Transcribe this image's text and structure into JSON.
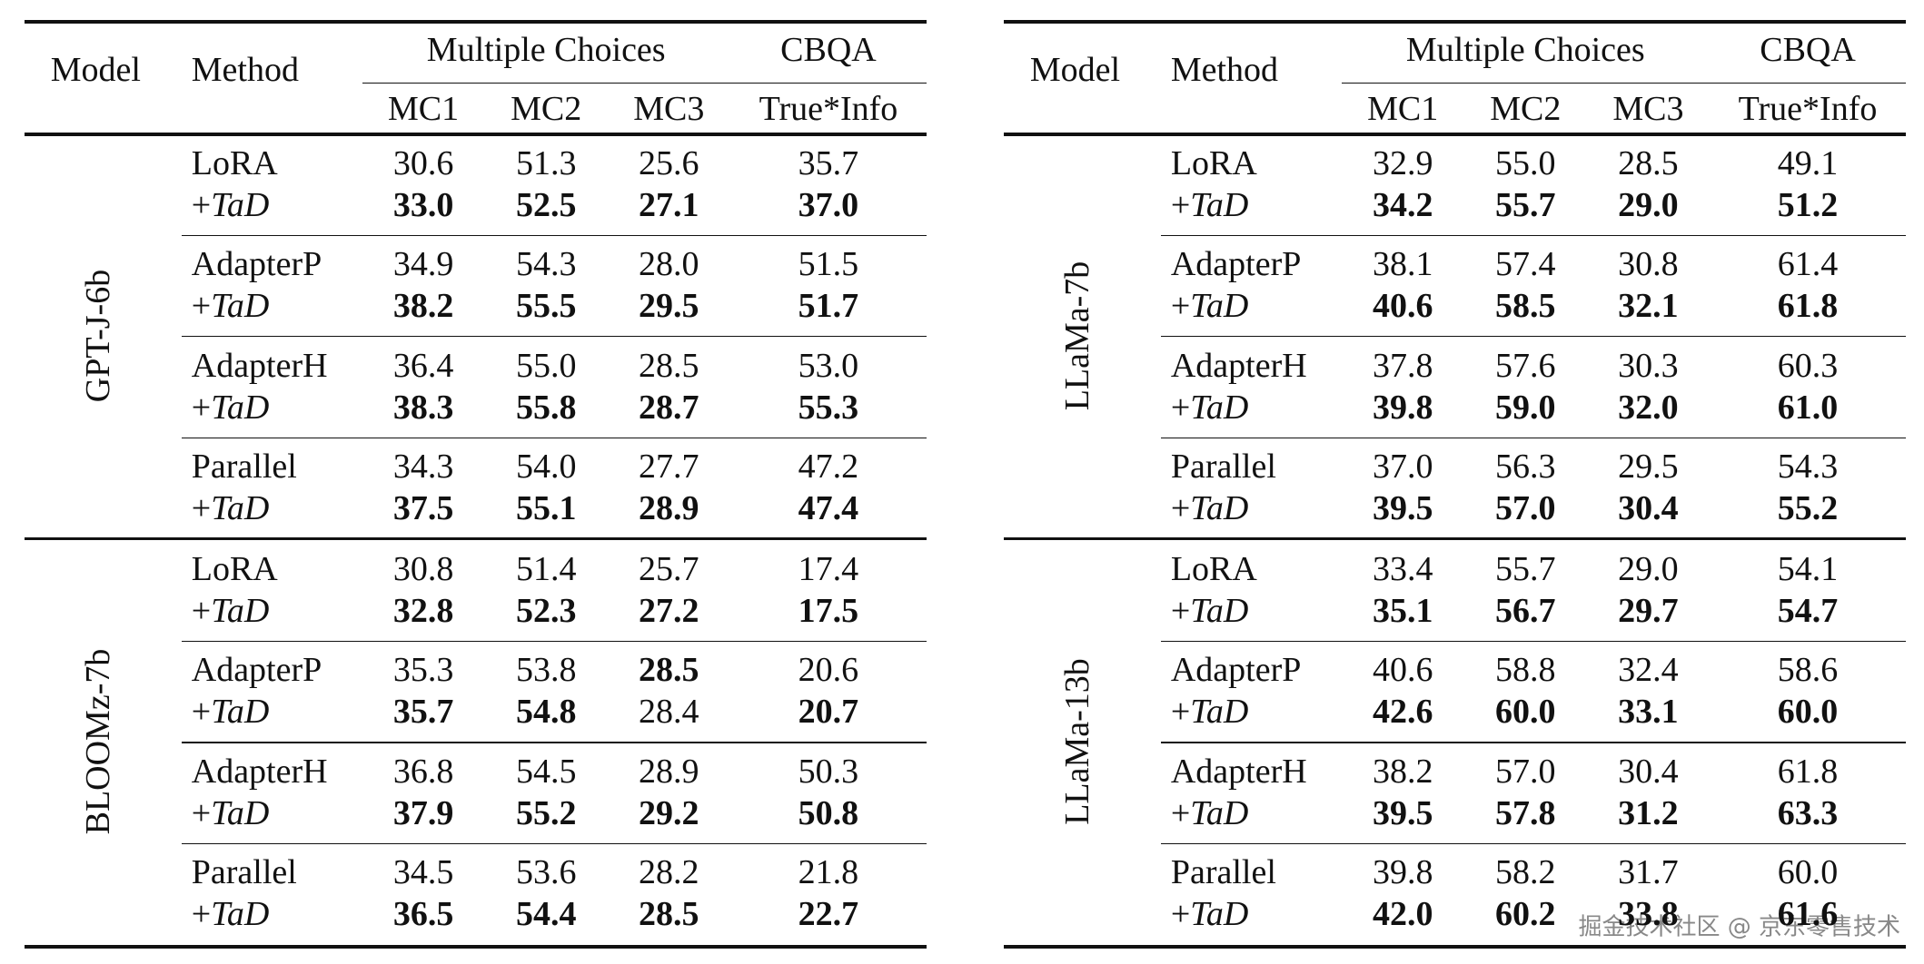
{
  "tables": [
    {
      "header": {
        "model": "Model",
        "method": "Method",
        "mc": "Multiple Choices",
        "cbqa": "CBQA",
        "columns": [
          "MC1",
          "MC2",
          "MC3",
          "True*Info"
        ]
      },
      "groups": [
        {
          "model": "GPT-J-6b",
          "rows": [
            {
              "method": "LoRA",
              "values": [
                "30.6",
                "51.3",
                "25.6",
                "35.7"
              ],
              "bold": [
                false,
                false,
                false,
                false
              ]
            },
            {
              "method": {
                "plain": "+",
                "italic": "TaD"
              },
              "values": [
                "33.0",
                "52.5",
                "27.1",
                "37.0"
              ],
              "bold": [
                true,
                true,
                true,
                true
              ]
            },
            {
              "method": "AdapterP",
              "values": [
                "34.9",
                "54.3",
                "28.0",
                "51.5"
              ],
              "bold": [
                false,
                false,
                false,
                false
              ]
            },
            {
              "method": {
                "plain": "+",
                "italic": "TaD"
              },
              "values": [
                "38.2",
                "55.5",
                "29.5",
                "51.7"
              ],
              "bold": [
                true,
                true,
                true,
                true
              ]
            },
            {
              "method": "AdapterH",
              "values": [
                "36.4",
                "55.0",
                "28.5",
                "53.0"
              ],
              "bold": [
                false,
                false,
                false,
                false
              ]
            },
            {
              "method": {
                "plain": "+",
                "italic": "TaD"
              },
              "values": [
                "38.3",
                "55.8",
                "28.7",
                "55.3"
              ],
              "bold": [
                true,
                true,
                true,
                true
              ]
            },
            {
              "method": "Parallel",
              "values": [
                "34.3",
                "54.0",
                "27.7",
                "47.2"
              ],
              "bold": [
                false,
                false,
                false,
                false
              ]
            },
            {
              "method": {
                "plain": "+",
                "italic": "TaD"
              },
              "values": [
                "37.5",
                "55.1",
                "28.9",
                "47.4"
              ],
              "bold": [
                true,
                true,
                true,
                true
              ]
            }
          ]
        },
        {
          "model": "BLOOMz-7b",
          "rows": [
            {
              "method": "LoRA",
              "values": [
                "30.8",
                "51.4",
                "25.7",
                "17.4"
              ],
              "bold": [
                false,
                false,
                false,
                false
              ]
            },
            {
              "method": {
                "plain": "+",
                "italic": "TaD"
              },
              "values": [
                "32.8",
                "52.3",
                "27.2",
                "17.5"
              ],
              "bold": [
                true,
                true,
                true,
                true
              ]
            },
            {
              "method": "AdapterP",
              "values": [
                "35.3",
                "53.8",
                "28.5",
                "20.6"
              ],
              "bold": [
                false,
                false,
                true,
                false
              ]
            },
            {
              "method": {
                "plain": "+",
                "italic": "TaD"
              },
              "values": [
                "35.7",
                "54.8",
                "28.4",
                "20.7"
              ],
              "bold": [
                true,
                true,
                false,
                true
              ]
            },
            {
              "method": "AdapterH",
              "values": [
                "36.8",
                "54.5",
                "28.9",
                "50.3"
              ],
              "bold": [
                false,
                false,
                false,
                false
              ]
            },
            {
              "method": {
                "plain": "+",
                "italic": "TaD"
              },
              "values": [
                "37.9",
                "55.2",
                "29.2",
                "50.8"
              ],
              "bold": [
                true,
                true,
                true,
                true
              ]
            },
            {
              "method": "Parallel",
              "values": [
                "34.5",
                "53.6",
                "28.2",
                "21.8"
              ],
              "bold": [
                false,
                false,
                false,
                false
              ]
            },
            {
              "method": {
                "plain": "+",
                "italic": "TaD"
              },
              "values": [
                "36.5",
                "54.4",
                "28.5",
                "22.7"
              ],
              "bold": [
                true,
                true,
                true,
                true
              ]
            }
          ]
        }
      ]
    },
    {
      "header": {
        "model": "Model",
        "method": "Method",
        "mc": "Multiple Choices",
        "cbqa": "CBQA",
        "columns": [
          "MC1",
          "MC2",
          "MC3",
          "True*Info"
        ]
      },
      "groups": [
        {
          "model": "LLaMa-7b",
          "rows": [
            {
              "method": "LoRA",
              "values": [
                "32.9",
                "55.0",
                "28.5",
                "49.1"
              ],
              "bold": [
                false,
                false,
                false,
                false
              ]
            },
            {
              "method": {
                "plain": "+",
                "italic": "TaD"
              },
              "values": [
                "34.2",
                "55.7",
                "29.0",
                "51.2"
              ],
              "bold": [
                true,
                true,
                true,
                true
              ]
            },
            {
              "method": "AdapterP",
              "values": [
                "38.1",
                "57.4",
                "30.8",
                "61.4"
              ],
              "bold": [
                false,
                false,
                false,
                false
              ]
            },
            {
              "method": {
                "plain": "+",
                "italic": "TaD"
              },
              "values": [
                "40.6",
                "58.5",
                "32.1",
                "61.8"
              ],
              "bold": [
                true,
                true,
                true,
                true
              ]
            },
            {
              "method": "AdapterH",
              "values": [
                "37.8",
                "57.6",
                "30.3",
                "60.3"
              ],
              "bold": [
                false,
                false,
                false,
                false
              ]
            },
            {
              "method": {
                "plain": "+",
                "italic": "TaD"
              },
              "values": [
                "39.8",
                "59.0",
                "32.0",
                "61.0"
              ],
              "bold": [
                true,
                true,
                true,
                true
              ]
            },
            {
              "method": "Parallel",
              "values": [
                "37.0",
                "56.3",
                "29.5",
                "54.3"
              ],
              "bold": [
                false,
                false,
                false,
                false
              ]
            },
            {
              "method": {
                "plain": "+",
                "italic": "TaD"
              },
              "values": [
                "39.5",
                "57.0",
                "30.4",
                "55.2"
              ],
              "bold": [
                true,
                true,
                true,
                true
              ]
            }
          ]
        },
        {
          "model": "LLaMa-13b",
          "rows": [
            {
              "method": "LoRA",
              "values": [
                "33.4",
                "55.7",
                "29.0",
                "54.1"
              ],
              "bold": [
                false,
                false,
                false,
                false
              ]
            },
            {
              "method": {
                "plain": "+",
                "italic": "TaD"
              },
              "values": [
                "35.1",
                "56.7",
                "29.7",
                "54.7"
              ],
              "bold": [
                true,
                true,
                true,
                true
              ]
            },
            {
              "method": "AdapterP",
              "values": [
                "40.6",
                "58.8",
                "32.4",
                "58.6"
              ],
              "bold": [
                false,
                false,
                false,
                false
              ]
            },
            {
              "method": {
                "plain": "+",
                "italic": "TaD"
              },
              "values": [
                "42.6",
                "60.0",
                "33.1",
                "60.0"
              ],
              "bold": [
                true,
                true,
                true,
                true
              ]
            },
            {
              "method": "AdapterH",
              "values": [
                "38.2",
                "57.0",
                "30.4",
                "61.8"
              ],
              "bold": [
                false,
                false,
                false,
                false
              ]
            },
            {
              "method": {
                "plain": "+",
                "italic": "TaD"
              },
              "values": [
                "39.5",
                "57.8",
                "31.2",
                "63.3"
              ],
              "bold": [
                true,
                true,
                true,
                true
              ]
            },
            {
              "method": "Parallel",
              "values": [
                "39.8",
                "58.2",
                "31.7",
                "60.0"
              ],
              "bold": [
                false,
                false,
                false,
                false
              ]
            },
            {
              "method": {
                "plain": "+",
                "italic": "TaD"
              },
              "values": [
                "42.0",
                "60.2",
                "33.8",
                "61.6"
              ],
              "bold": [
                true,
                true,
                true,
                true
              ]
            }
          ]
        }
      ]
    }
  ],
  "watermark": "掘金技术社区 @ 京东零售技术"
}
